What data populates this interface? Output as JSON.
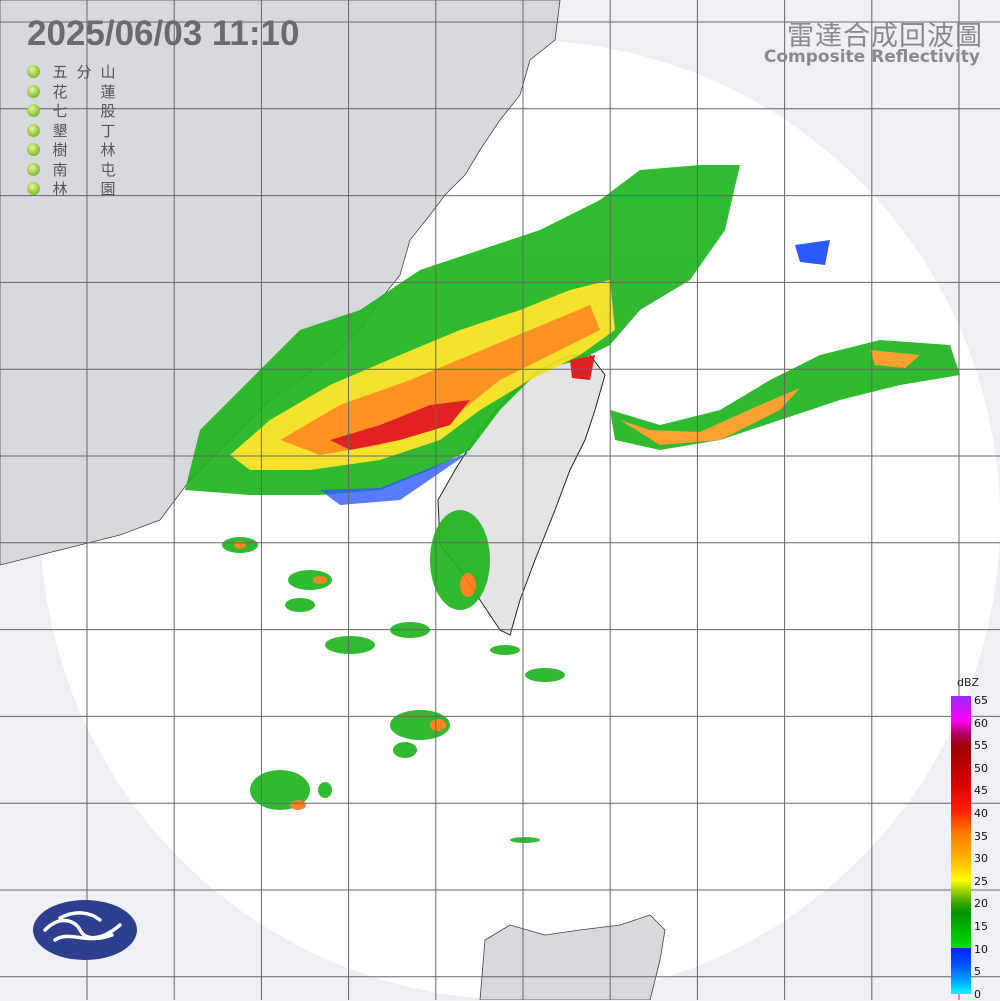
{
  "timestamp": "2025/06/03  11:10",
  "title": {
    "chinese": "雷達合成回波圖",
    "english": "Composite Reflectivity"
  },
  "stations": [
    {
      "name": [
        "五",
        "分",
        "山"
      ],
      "status_color": "#8cc63a"
    },
    {
      "name": [
        "花",
        "",
        "蓮"
      ],
      "status_color": "#8cc63a"
    },
    {
      "name": [
        "七",
        "",
        "股"
      ],
      "status_color": "#8cc63a"
    },
    {
      "name": [
        "墾",
        "",
        "丁"
      ],
      "status_color": "#8cc63a"
    },
    {
      "name": [
        "樹",
        "",
        "林"
      ],
      "status_color": "#8cc63a"
    },
    {
      "name": [
        "南",
        "",
        "屯"
      ],
      "status_color": "#8cc63a"
    },
    {
      "name": [
        "林",
        "",
        "園"
      ],
      "status_color": "#8cc63a"
    }
  ],
  "legend": {
    "unit": "dBZ",
    "ticks": [
      "65",
      "60",
      "55",
      "50",
      "45",
      "40",
      "35",
      "30",
      "25",
      "20",
      "15",
      "10",
      "5",
      "0"
    ]
  },
  "logo": "central-weather-administration-logo",
  "colors": {
    "land": "#d8d9de",
    "radar_area": "#ffffff",
    "outside": "#eef0f5",
    "grid": "#555555",
    "logo": "#2e3f8f"
  }
}
